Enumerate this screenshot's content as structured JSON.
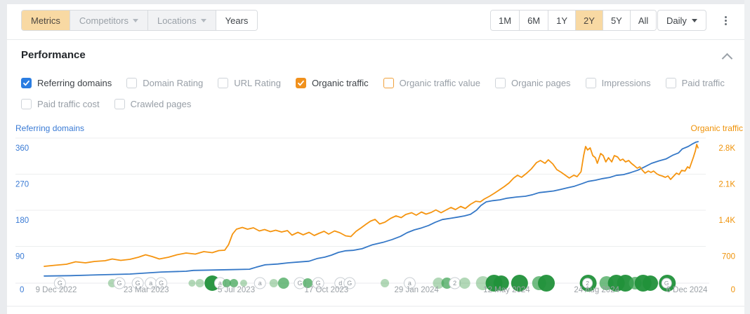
{
  "toolbar": {
    "left_tabs": [
      {
        "label": "Metrics",
        "state": "selected"
      },
      {
        "label": "Competitors",
        "state": "disabled",
        "caret": true
      },
      {
        "label": "Locations",
        "state": "disabled",
        "caret": true
      },
      {
        "label": "Years",
        "state": "default"
      }
    ],
    "range_buttons": [
      {
        "label": "1M"
      },
      {
        "label": "6M"
      },
      {
        "label": "1Y"
      },
      {
        "label": "2Y",
        "selected": true
      },
      {
        "label": "5Y"
      },
      {
        "label": "All"
      }
    ],
    "granularity": {
      "label": "Daily"
    }
  },
  "performance": {
    "title": "Performance",
    "metrics_row1": [
      {
        "label": "Referring domains",
        "checked": true,
        "check_color": "#2b7de1",
        "active": true
      },
      {
        "label": "Domain Rating",
        "checked": false,
        "active": false
      },
      {
        "label": "URL Rating",
        "checked": false,
        "active": false
      },
      {
        "label": "Organic traffic",
        "checked": true,
        "check_color": "#f0911d",
        "active": true
      },
      {
        "label": "Organic traffic value",
        "checked": false,
        "border_color": "#f0a13c",
        "active": false
      },
      {
        "label": "Organic pages",
        "checked": false,
        "active": false
      },
      {
        "label": "Impressions",
        "checked": false,
        "active": false
      },
      {
        "label": "Paid traffic",
        "checked": false,
        "active": false
      }
    ],
    "metrics_row2": [
      {
        "label": "Paid traffic cost",
        "checked": false,
        "active": false
      },
      {
        "label": "Crawled pages",
        "checked": false,
        "active": false
      }
    ]
  },
  "chart_data": {
    "type": "line",
    "grid": true,
    "legend_position": "top-corners",
    "left_axis": {
      "title": "Referring domains",
      "color": "#3a7bd5",
      "ticks": [
        360,
        270,
        180,
        90
      ],
      "zero_label": "0",
      "max": 390
    },
    "right_axis": {
      "title": "Organic traffic",
      "color": "#ef9208",
      "ticks": [
        "2.8K",
        "2.1K",
        "1.4K",
        "700"
      ],
      "tick_values": [
        2800,
        2100,
        1400,
        700
      ],
      "zero_label": "0",
      "max": 3033
    },
    "x_axis": {
      "tick_labels": [
        "9 Dec 2022",
        "23 Mar 2023",
        "5 Jul 2023",
        "17 Oct 2023",
        "29 Jan 2024",
        "12 May 2024",
        "24 Aug 2024",
        "6 Dec 2024"
      ]
    },
    "series": [
      {
        "name": "Referring domains",
        "axis": "left",
        "color": "#3578c7",
        "points": [
          [
            0,
            16
          ],
          [
            0.04,
            17
          ],
          [
            0.083,
            19
          ],
          [
            0.131,
            21
          ],
          [
            0.179,
            26
          ],
          [
            0.217,
            28
          ],
          [
            0.228,
            30
          ],
          [
            0.255,
            31
          ],
          [
            0.287,
            32
          ],
          [
            0.314,
            33
          ],
          [
            0.324,
            38
          ],
          [
            0.338,
            44
          ],
          [
            0.357,
            46
          ],
          [
            0.373,
            49
          ],
          [
            0.389,
            51
          ],
          [
            0.405,
            53
          ],
          [
            0.418,
            60
          ],
          [
            0.429,
            63
          ],
          [
            0.439,
            68
          ],
          [
            0.45,
            75
          ],
          [
            0.461,
            79
          ],
          [
            0.472,
            80
          ],
          [
            0.486,
            84
          ],
          [
            0.502,
            94
          ],
          [
            0.518,
            100
          ],
          [
            0.532,
            107
          ],
          [
            0.545,
            115
          ],
          [
            0.555,
            124
          ],
          [
            0.566,
            131
          ],
          [
            0.577,
            136
          ],
          [
            0.588,
            142
          ],
          [
            0.598,
            150
          ],
          [
            0.609,
            157
          ],
          [
            0.622,
            160
          ],
          [
            0.633,
            163
          ],
          [
            0.643,
            166
          ],
          [
            0.652,
            170
          ],
          [
            0.661,
            180
          ],
          [
            0.668,
            192
          ],
          [
            0.676,
            201
          ],
          [
            0.686,
            204
          ],
          [
            0.697,
            206
          ],
          [
            0.708,
            210
          ],
          [
            0.722,
            213
          ],
          [
            0.736,
            215
          ],
          [
            0.747,
            219
          ],
          [
            0.757,
            224
          ],
          [
            0.768,
            226
          ],
          [
            0.779,
            228
          ],
          [
            0.79,
            232
          ],
          [
            0.8,
            236
          ],
          [
            0.811,
            240
          ],
          [
            0.822,
            246
          ],
          [
            0.832,
            252
          ],
          [
            0.843,
            255
          ],
          [
            0.854,
            259
          ],
          [
            0.865,
            262
          ],
          [
            0.875,
            267
          ],
          [
            0.886,
            269
          ],
          [
            0.897,
            274
          ],
          [
            0.908,
            280
          ],
          [
            0.918,
            288
          ],
          [
            0.929,
            297
          ],
          [
            0.94,
            303
          ],
          [
            0.951,
            308
          ],
          [
            0.961,
            317
          ],
          [
            0.97,
            323
          ],
          [
            0.976,
            333
          ],
          [
            0.985,
            339
          ],
          [
            0.991,
            345
          ],
          [
            0.997,
            350
          ],
          [
            1,
            351
          ]
        ]
      },
      {
        "name": "Organic traffic",
        "axis": "right",
        "color": "#f5940f",
        "points": [
          [
            0,
            313
          ],
          [
            0.016,
            333
          ],
          [
            0.034,
            353
          ],
          [
            0.048,
            401
          ],
          [
            0.063,
            381
          ],
          [
            0.077,
            408
          ],
          [
            0.093,
            421
          ],
          [
            0.104,
            455
          ],
          [
            0.117,
            428
          ],
          [
            0.131,
            449
          ],
          [
            0.144,
            489
          ],
          [
            0.155,
            537
          ],
          [
            0.165,
            503
          ],
          [
            0.176,
            455
          ],
          [
            0.19,
            489
          ],
          [
            0.203,
            537
          ],
          [
            0.217,
            571
          ],
          [
            0.231,
            550
          ],
          [
            0.244,
            598
          ],
          [
            0.257,
            578
          ],
          [
            0.267,
            618
          ],
          [
            0.276,
            625
          ],
          [
            0.282,
            734
          ],
          [
            0.288,
            938
          ],
          [
            0.294,
            1033
          ],
          [
            0.303,
            1067
          ],
          [
            0.311,
            1033
          ],
          [
            0.32,
            1060
          ],
          [
            0.329,
            999
          ],
          [
            0.337,
            1026
          ],
          [
            0.346,
            985
          ],
          [
            0.354,
            1012
          ],
          [
            0.363,
            979
          ],
          [
            0.372,
            1006
          ],
          [
            0.379,
            917
          ],
          [
            0.388,
            972
          ],
          [
            0.396,
            924
          ],
          [
            0.405,
            972
          ],
          [
            0.413,
            911
          ],
          [
            0.42,
            951
          ],
          [
            0.428,
            992
          ],
          [
            0.435,
            938
          ],
          [
            0.444,
            999
          ],
          [
            0.452,
            965
          ],
          [
            0.461,
            904
          ],
          [
            0.469,
            890
          ],
          [
            0.477,
            992
          ],
          [
            0.484,
            1053
          ],
          [
            0.492,
            1128
          ],
          [
            0.499,
            1189
          ],
          [
            0.506,
            1223
          ],
          [
            0.513,
            1135
          ],
          [
            0.521,
            1169
          ],
          [
            0.53,
            1244
          ],
          [
            0.538,
            1291
          ],
          [
            0.546,
            1257
          ],
          [
            0.553,
            1318
          ],
          [
            0.562,
            1352
          ],
          [
            0.569,
            1305
          ],
          [
            0.577,
            1366
          ],
          [
            0.584,
            1325
          ],
          [
            0.592,
            1359
          ],
          [
            0.599,
            1407
          ],
          [
            0.607,
            1352
          ],
          [
            0.614,
            1400
          ],
          [
            0.622,
            1454
          ],
          [
            0.629,
            1413
          ],
          [
            0.637,
            1475
          ],
          [
            0.644,
            1434
          ],
          [
            0.652,
            1515
          ],
          [
            0.66,
            1576
          ],
          [
            0.667,
            1563
          ],
          [
            0.673,
            1617
          ],
          [
            0.681,
            1672
          ],
          [
            0.688,
            1726
          ],
          [
            0.696,
            1794
          ],
          [
            0.704,
            1862
          ],
          [
            0.711,
            1930
          ],
          [
            0.718,
            2025
          ],
          [
            0.724,
            2080
          ],
          [
            0.73,
            2039
          ],
          [
            0.738,
            2120
          ],
          [
            0.745,
            2202
          ],
          [
            0.753,
            2324
          ],
          [
            0.759,
            2365
          ],
          [
            0.766,
            2311
          ],
          [
            0.771,
            2379
          ],
          [
            0.778,
            2297
          ],
          [
            0.784,
            2188
          ],
          [
            0.791,
            2134
          ],
          [
            0.797,
            2080
          ],
          [
            0.803,
            2025
          ],
          [
            0.81,
            2080
          ],
          [
            0.815,
            2052
          ],
          [
            0.821,
            2147
          ],
          [
            0.825,
            2460
          ],
          [
            0.828,
            2637
          ],
          [
            0.831,
            2569
          ],
          [
            0.835,
            2610
          ],
          [
            0.839,
            2460
          ],
          [
            0.843,
            2420
          ],
          [
            0.846,
            2311
          ],
          [
            0.851,
            2501
          ],
          [
            0.855,
            2460
          ],
          [
            0.859,
            2338
          ],
          [
            0.863,
            2420
          ],
          [
            0.868,
            2338
          ],
          [
            0.872,
            2460
          ],
          [
            0.877,
            2433
          ],
          [
            0.881,
            2365
          ],
          [
            0.885,
            2392
          ],
          [
            0.889,
            2338
          ],
          [
            0.894,
            2365
          ],
          [
            0.898,
            2311
          ],
          [
            0.902,
            2270
          ],
          [
            0.907,
            2215
          ],
          [
            0.911,
            2243
          ],
          [
            0.915,
            2175
          ],
          [
            0.919,
            2120
          ],
          [
            0.924,
            2161
          ],
          [
            0.928,
            2134
          ],
          [
            0.932,
            2161
          ],
          [
            0.937,
            2107
          ],
          [
            0.941,
            2080
          ],
          [
            0.945,
            2066
          ],
          [
            0.95,
            2039
          ],
          [
            0.954,
            2066
          ],
          [
            0.958,
            1998
          ],
          [
            0.962,
            2052
          ],
          [
            0.967,
            2120
          ],
          [
            0.971,
            2093
          ],
          [
            0.975,
            2175
          ],
          [
            0.98,
            2161
          ],
          [
            0.984,
            2243
          ],
          [
            0.987,
            2215
          ],
          [
            0.99,
            2324
          ],
          [
            0.993,
            2433
          ],
          [
            0.996,
            2556
          ],
          [
            0.998,
            2678
          ],
          [
            1,
            2610
          ]
        ]
      }
    ],
    "events": [
      {
        "t": 0.024,
        "letter": "G"
      },
      {
        "t": 0.104,
        "tone": "light",
        "r": 6
      },
      {
        "t": 0.115,
        "letter": "G"
      },
      {
        "t": 0.143,
        "letter": "G"
      },
      {
        "t": 0.163,
        "letter": "a"
      },
      {
        "t": 0.179,
        "letter": "G"
      },
      {
        "t": 0.226,
        "tone": "light",
        "r": 5
      },
      {
        "t": 0.238,
        "tone": "light",
        "r": 6
      },
      {
        "t": 0.257,
        "tone": "dark",
        "r": 11
      },
      {
        "t": 0.269,
        "letter": "a"
      },
      {
        "t": 0.279,
        "tone": "mid",
        "r": 6
      },
      {
        "t": 0.29,
        "tone": "mid",
        "r": 6
      },
      {
        "t": 0.305,
        "tone": "light",
        "r": 5
      },
      {
        "t": 0.33,
        "letter": "a"
      },
      {
        "t": 0.351,
        "tone": "light",
        "r": 6
      },
      {
        "t": 0.366,
        "tone": "mid",
        "r": 8
      },
      {
        "t": 0.391,
        "letter": "G"
      },
      {
        "t": 0.403,
        "tone": "mid",
        "r": 7
      },
      {
        "t": 0.419,
        "letter": "G"
      },
      {
        "t": 0.453,
        "letter": "d"
      },
      {
        "t": 0.467,
        "letter": "G"
      },
      {
        "t": 0.521,
        "tone": "light",
        "r": 6
      },
      {
        "t": 0.559,
        "letter": "a"
      },
      {
        "t": 0.603,
        "tone": "light",
        "r": 8
      },
      {
        "t": 0.616,
        "tone": "mid",
        "r": 8
      },
      {
        "t": 0.628,
        "letter": "2"
      },
      {
        "t": 0.643,
        "tone": "light",
        "r": 8
      },
      {
        "t": 0.671,
        "tone": "light",
        "r": 10
      },
      {
        "t": 0.688,
        "tone": "dark",
        "r": 12
      },
      {
        "t": 0.699,
        "tone": "dark",
        "r": 11
      },
      {
        "t": 0.727,
        "tone": "dark",
        "r": 12
      },
      {
        "t": 0.757,
        "tone": "mid",
        "r": 10
      },
      {
        "t": 0.768,
        "tone": "dark",
        "r": 12
      },
      {
        "t": 0.832,
        "tone": "dark",
        "r": 12,
        "badge": "2"
      },
      {
        "t": 0.86,
        "tone": "mid",
        "r": 10
      },
      {
        "t": 0.875,
        "tone": "dark",
        "r": 12
      },
      {
        "t": 0.889,
        "tone": "dark",
        "r": 12
      },
      {
        "t": 0.904,
        "tone": "mid",
        "r": 9
      },
      {
        "t": 0.916,
        "tone": "dark",
        "r": 12
      },
      {
        "t": 0.927,
        "tone": "dark",
        "r": 11
      },
      {
        "t": 0.953,
        "tone": "dark",
        "r": 12,
        "badge": "G"
      }
    ],
    "event_tones": {
      "light": {
        "fill": "#66b26f",
        "opacity": 0.5
      },
      "mid": {
        "fill": "#43a558",
        "opacity": 0.75
      },
      "dark": {
        "fill": "#21913a",
        "opacity": 0.95
      }
    }
  },
  "colors": {
    "selected_tab_bg": "#f8d9a3",
    "muted_text": "#9aa1a8",
    "date_text": "#9ba1a6",
    "gridline": "#eceeef",
    "event_line": "#e8eaec",
    "outline_circle_border": "#c9ced3",
    "outline_circle_text": "#8d949b"
  }
}
